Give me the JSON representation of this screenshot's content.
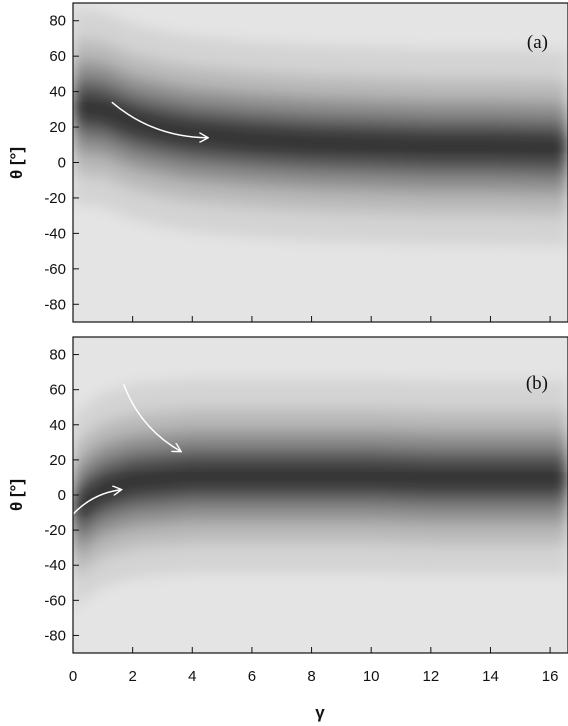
{
  "chart_data": {
    "type": "heatmap",
    "x_axis": {
      "label": "γ",
      "range": [
        0,
        16.6
      ],
      "ticks": [
        0,
        2,
        4,
        6,
        8,
        10,
        12,
        14,
        16
      ],
      "tick_labels": [
        "0",
        "2",
        "4",
        "6",
        "8",
        "10",
        "12",
        "14",
        "16"
      ]
    },
    "y_axis": {
      "label": "θ [°]",
      "range": [
        -90,
        90
      ],
      "ticks": [
        80,
        60,
        40,
        20,
        0,
        -20,
        -40,
        -60,
        -80
      ],
      "tick_labels": [
        "80",
        "60",
        "40",
        "20",
        "0",
        "-20",
        "-40",
        "-60",
        "-80"
      ]
    },
    "colormap": "grayscale (darker = higher density)",
    "panels": [
      {
        "label": "(a)",
        "ridge": [
          {
            "x": 0.0,
            "y": 32
          },
          {
            "x": 1.0,
            "y": 30
          },
          {
            "x": 2.0,
            "y": 23
          },
          {
            "x": 3.0,
            "y": 19
          },
          {
            "x": 4.0,
            "y": 16
          },
          {
            "x": 6.0,
            "y": 13
          },
          {
            "x": 8.0,
            "y": 11
          },
          {
            "x": 10.0,
            "y": 10
          },
          {
            "x": 12.0,
            "y": 9
          },
          {
            "x": 14.0,
            "y": 9
          },
          {
            "x": 16.6,
            "y": 8
          }
        ],
        "arrows": [
          {
            "from": [
              1.3,
              34
            ],
            "to": [
              4.5,
              14
            ]
          }
        ]
      },
      {
        "label": "(b)",
        "ridge": [
          {
            "x": 0.0,
            "y": -10
          },
          {
            "x": 0.5,
            "y": -3
          },
          {
            "x": 1.0,
            "y": 3
          },
          {
            "x": 2.0,
            "y": 8
          },
          {
            "x": 4.0,
            "y": 11
          },
          {
            "x": 6.0,
            "y": 11
          },
          {
            "x": 8.0,
            "y": 11
          },
          {
            "x": 10.0,
            "y": 11
          },
          {
            "x": 12.0,
            "y": 10
          },
          {
            "x": 14.0,
            "y": 10
          },
          {
            "x": 16.6,
            "y": 10
          }
        ],
        "arrows": [
          {
            "from": [
              1.7,
              63
            ],
            "to": [
              3.6,
              25
            ]
          },
          {
            "from": [
              0.0,
              -11
            ],
            "to": [
              1.6,
              3
            ]
          }
        ]
      }
    ]
  }
}
